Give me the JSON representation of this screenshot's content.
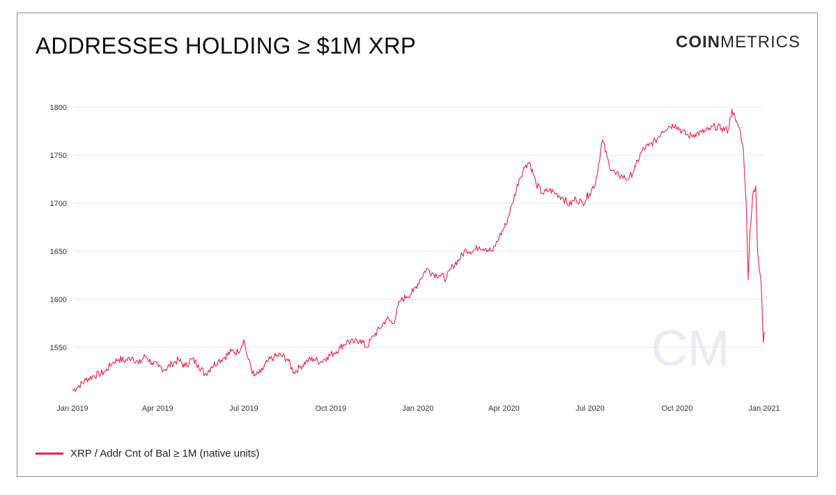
{
  "title": "ADDRESSES HOLDING ≥ $1M XRP",
  "logo": {
    "bold": "COIN",
    "light": "METRICS",
    "watermark": "CM"
  },
  "colors": {
    "line": "#e8204a",
    "grid": "#e6e6e6",
    "watermark": "#e9eaf3"
  },
  "legend": {
    "label": "XRP / Addr Cnt of Bal ≥ 1M (native units)"
  },
  "chart_data": {
    "type": "line",
    "title": "ADDRESSES HOLDING ≥ $1M XRP",
    "xlabel": "",
    "ylabel": "",
    "ylim": [
      1500,
      1800
    ],
    "grid": true,
    "legend_position": "bottom-left",
    "y_ticks": [
      1550,
      1600,
      1650,
      1700,
      1750,
      1800
    ],
    "x_ticks": [
      "2019-01-01",
      "2019-04-01",
      "2019-07-01",
      "2019-10-01",
      "2020-01-01",
      "2020-04-01",
      "2020-07-01",
      "2020-10-01",
      "2021-01-01"
    ],
    "x_tick_labels": [
      "Jan 2019",
      "Apr 2019",
      "Jul 2019",
      "Oct 2019",
      "Jan 2020",
      "Apr 2020",
      "Jul 2020",
      "Oct 2020",
      "Jan 2021"
    ],
    "series": [
      {
        "name": "XRP / Addr Cnt of Bal ≥ 1M (native units)",
        "color": "#e8204a",
        "points": [
          [
            "2019-01-01",
            1505
          ],
          [
            "2019-01-08",
            1510
          ],
          [
            "2019-01-15",
            1516
          ],
          [
            "2019-01-22",
            1520
          ],
          [
            "2019-01-29",
            1522
          ],
          [
            "2019-02-05",
            1525
          ],
          [
            "2019-02-12",
            1534
          ],
          [
            "2019-02-19",
            1538
          ],
          [
            "2019-02-26",
            1536
          ],
          [
            "2019-03-05",
            1540
          ],
          [
            "2019-03-12",
            1533
          ],
          [
            "2019-03-19",
            1541
          ],
          [
            "2019-03-26",
            1534
          ],
          [
            "2019-04-02",
            1530
          ],
          [
            "2019-04-09",
            1527
          ],
          [
            "2019-04-16",
            1533
          ],
          [
            "2019-04-23",
            1537
          ],
          [
            "2019-04-30",
            1530
          ],
          [
            "2019-05-07",
            1538
          ],
          [
            "2019-05-14",
            1532
          ],
          [
            "2019-05-21",
            1522
          ],
          [
            "2019-05-28",
            1530
          ],
          [
            "2019-06-04",
            1536
          ],
          [
            "2019-06-11",
            1540
          ],
          [
            "2019-06-18",
            1546
          ],
          [
            "2019-06-25",
            1545
          ],
          [
            "2019-07-01",
            1558
          ],
          [
            "2019-07-05",
            1540
          ],
          [
            "2019-07-12",
            1520
          ],
          [
            "2019-07-19",
            1524
          ],
          [
            "2019-07-26",
            1535
          ],
          [
            "2019-08-02",
            1540
          ],
          [
            "2019-08-09",
            1542
          ],
          [
            "2019-08-16",
            1538
          ],
          [
            "2019-08-23",
            1524
          ],
          [
            "2019-08-30",
            1530
          ],
          [
            "2019-09-06",
            1536
          ],
          [
            "2019-09-13",
            1538
          ],
          [
            "2019-09-20",
            1535
          ],
          [
            "2019-09-27",
            1540
          ],
          [
            "2019-10-04",
            1544
          ],
          [
            "2019-10-11",
            1550
          ],
          [
            "2019-10-18",
            1556
          ],
          [
            "2019-10-25",
            1555
          ],
          [
            "2019-11-01",
            1558
          ],
          [
            "2019-11-08",
            1550
          ],
          [
            "2019-11-15",
            1562
          ],
          [
            "2019-11-22",
            1570
          ],
          [
            "2019-11-29",
            1580
          ],
          [
            "2019-12-06",
            1575
          ],
          [
            "2019-12-13",
            1598
          ],
          [
            "2019-12-20",
            1603
          ],
          [
            "2019-12-27",
            1608
          ],
          [
            "2020-01-03",
            1620
          ],
          [
            "2020-01-10",
            1632
          ],
          [
            "2020-01-17",
            1627
          ],
          [
            "2020-01-24",
            1625
          ],
          [
            "2020-01-31",
            1622
          ],
          [
            "2020-02-07",
            1635
          ],
          [
            "2020-02-14",
            1642
          ],
          [
            "2020-02-21",
            1652
          ],
          [
            "2020-02-28",
            1650
          ],
          [
            "2020-03-06",
            1655
          ],
          [
            "2020-03-13",
            1653
          ],
          [
            "2020-03-20",
            1650
          ],
          [
            "2020-03-27",
            1665
          ],
          [
            "2020-04-03",
            1678
          ],
          [
            "2020-04-10",
            1700
          ],
          [
            "2020-04-17",
            1725
          ],
          [
            "2020-04-24",
            1740
          ],
          [
            "2020-04-28",
            1743
          ],
          [
            "2020-05-05",
            1720
          ],
          [
            "2020-05-12",
            1710
          ],
          [
            "2020-05-19",
            1714
          ],
          [
            "2020-05-26",
            1710
          ],
          [
            "2020-06-02",
            1706
          ],
          [
            "2020-06-09",
            1698
          ],
          [
            "2020-06-16",
            1705
          ],
          [
            "2020-06-23",
            1700
          ],
          [
            "2020-06-30",
            1710
          ],
          [
            "2020-07-07",
            1722
          ],
          [
            "2020-07-14",
            1766
          ],
          [
            "2020-07-21",
            1740
          ],
          [
            "2020-07-28",
            1730
          ],
          [
            "2020-08-04",
            1728
          ],
          [
            "2020-08-11",
            1725
          ],
          [
            "2020-08-18",
            1738
          ],
          [
            "2020-08-25",
            1755
          ],
          [
            "2020-09-01",
            1760
          ],
          [
            "2020-09-08",
            1765
          ],
          [
            "2020-09-15",
            1775
          ],
          [
            "2020-09-22",
            1780
          ],
          [
            "2020-09-29",
            1782
          ],
          [
            "2020-10-06",
            1775
          ],
          [
            "2020-10-13",
            1770
          ],
          [
            "2020-10-20",
            1772
          ],
          [
            "2020-10-27",
            1774
          ],
          [
            "2020-11-03",
            1776
          ],
          [
            "2020-11-10",
            1780
          ],
          [
            "2020-11-17",
            1778
          ],
          [
            "2020-11-24",
            1776
          ],
          [
            "2020-11-28",
            1798
          ],
          [
            "2020-12-02",
            1785
          ],
          [
            "2020-12-06",
            1778
          ],
          [
            "2020-12-10",
            1755
          ],
          [
            "2020-12-13",
            1700
          ],
          [
            "2020-12-15",
            1620
          ],
          [
            "2020-12-17",
            1672
          ],
          [
            "2020-12-20",
            1710
          ],
          [
            "2020-12-23",
            1718
          ],
          [
            "2020-12-25",
            1650
          ],
          [
            "2020-12-27",
            1630
          ],
          [
            "2020-12-29",
            1612
          ],
          [
            "2020-12-31",
            1555
          ],
          [
            "2021-01-01",
            1565
          ],
          [
            "2021-01-02",
            1566
          ]
        ]
      }
    ]
  }
}
